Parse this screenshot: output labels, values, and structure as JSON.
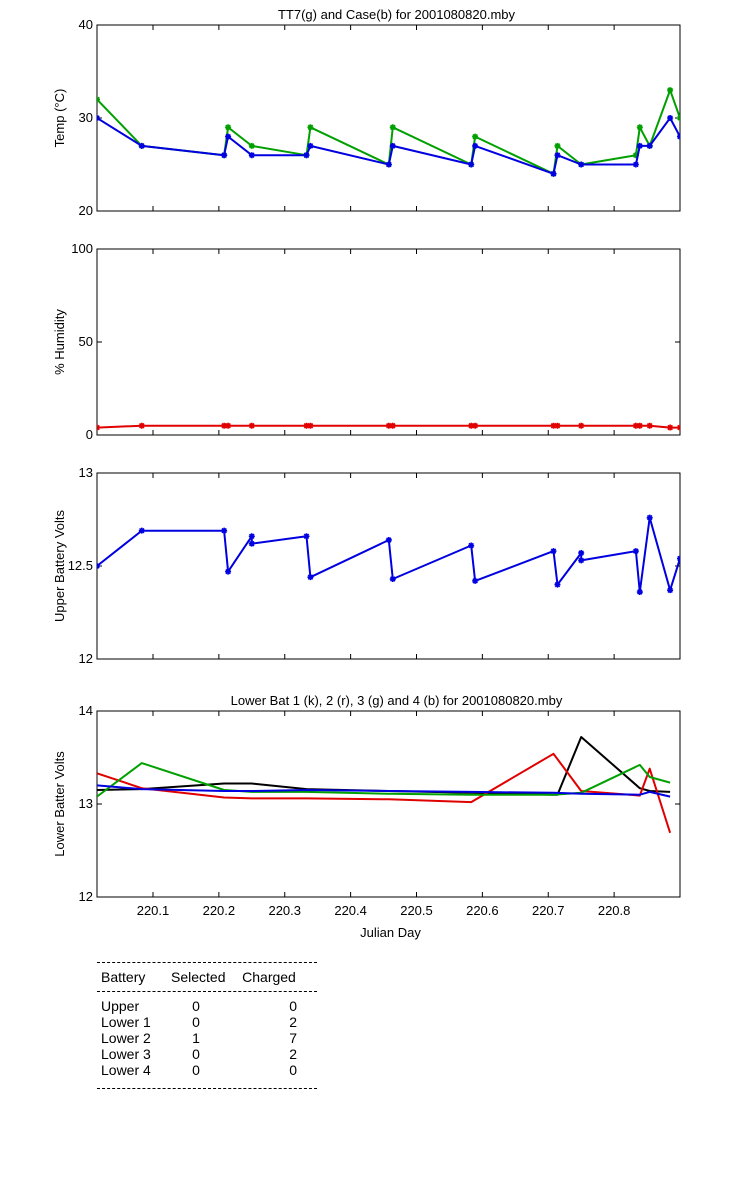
{
  "chart_data": [
    {
      "type": "line",
      "title": "TT7(g) and Case(b) for 2001080820.mby",
      "xlabel": "",
      "ylabel": "Temp  (°C)",
      "xlim": [
        220.015,
        220.9
      ],
      "ylim": [
        20,
        40
      ],
      "yticks": [
        "20",
        "30",
        "40"
      ],
      "markers": true,
      "series": [
        {
          "color": "#00a000",
          "x": [
            220.015,
            220.083,
            220.208,
            220.214,
            220.25,
            220.333,
            220.339,
            220.458,
            220.464,
            220.583,
            220.589,
            220.708,
            220.714,
            220.75,
            220.833,
            220.839,
            220.854,
            220.885,
            220.9
          ],
          "y": [
            32,
            27,
            26,
            29,
            27,
            26,
            29,
            25,
            29,
            25,
            28,
            24,
            27,
            25,
            26,
            29,
            27,
            33,
            30
          ]
        },
        {
          "color": "#0000e0",
          "x": [
            220.015,
            220.083,
            220.208,
            220.214,
            220.25,
            220.333,
            220.339,
            220.458,
            220.464,
            220.583,
            220.589,
            220.708,
            220.714,
            220.75,
            220.833,
            220.839,
            220.854,
            220.885,
            220.9
          ],
          "y": [
            30,
            27,
            26,
            28,
            26,
            26,
            27,
            25,
            27,
            25,
            27,
            24,
            26,
            25,
            25,
            27,
            27,
            30,
            28
          ]
        }
      ]
    },
    {
      "type": "line",
      "title": "",
      "xlabel": "",
      "ylabel": "% Humidity",
      "xlim": [
        220.015,
        220.9
      ],
      "ylim": [
        0,
        100
      ],
      "yticks": [
        "0",
        "50",
        "100"
      ],
      "markers": true,
      "series": [
        {
          "color": "#e00000",
          "x": [
            220.015,
            220.083,
            220.208,
            220.214,
            220.25,
            220.333,
            220.339,
            220.458,
            220.464,
            220.583,
            220.589,
            220.708,
            220.714,
            220.75,
            220.833,
            220.839,
            220.854,
            220.885,
            220.9
          ],
          "y": [
            4,
            5,
            5,
            5,
            5,
            5,
            5,
            5,
            5,
            5,
            5,
            5,
            5,
            5,
            5,
            5,
            5,
            4,
            4
          ]
        }
      ]
    },
    {
      "type": "line",
      "title": "",
      "xlabel": "",
      "ylabel": "Upper Battery Volts",
      "xlim": [
        220.015,
        220.9
      ],
      "ylim": [
        12,
        13
      ],
      "yticks": [
        "12",
        "12.5",
        "13"
      ],
      "markers": true,
      "series": [
        {
          "color": "#0000e0",
          "x": [
            220.015,
            220.083,
            220.208,
            220.214,
            220.25,
            220.25,
            220.333,
            220.339,
            220.458,
            220.464,
            220.583,
            220.589,
            220.708,
            220.714,
            220.75,
            220.75,
            220.833,
            220.839,
            220.854,
            220.885,
            220.9
          ],
          "y": [
            12.5,
            12.69,
            12.69,
            12.47,
            12.66,
            12.62,
            12.66,
            12.44,
            12.64,
            12.43,
            12.61,
            12.42,
            12.58,
            12.4,
            12.57,
            12.53,
            12.58,
            12.36,
            12.76,
            12.37,
            12.54
          ]
        }
      ]
    },
    {
      "type": "line",
      "title": "Lower Bat 1 (k), 2 (r), 3 (g) and 4 (b) for 2001080820.mby",
      "xlabel": "Julian Day",
      "ylabel": "Lower Batter Volts",
      "xlim": [
        220.015,
        220.9
      ],
      "ylim": [
        12,
        14
      ],
      "yticks": [
        "12",
        "13",
        "14"
      ],
      "xticks": [
        "220.1",
        "220.2",
        "220.3",
        "220.4",
        "220.5",
        "220.6",
        "220.7",
        "220.8"
      ],
      "markers": false,
      "series": [
        {
          "color": "#000000",
          "x": [
            220.015,
            220.083,
            220.208,
            220.25,
            220.333,
            220.458,
            220.583,
            220.708,
            220.714,
            220.75,
            220.839,
            220.854,
            220.885
          ],
          "y": [
            13.15,
            13.16,
            13.22,
            13.22,
            13.16,
            13.14,
            13.12,
            13.1,
            13.1,
            13.72,
            13.17,
            13.14,
            13.13
          ]
        },
        {
          "color": "#e00000",
          "x": [
            220.015,
            220.083,
            220.208,
            220.25,
            220.333,
            220.458,
            220.583,
            220.708,
            220.75,
            220.839,
            220.854,
            220.885
          ],
          "y": [
            13.33,
            13.17,
            13.07,
            13.06,
            13.06,
            13.05,
            13.02,
            13.54,
            13.14,
            13.09,
            13.38,
            12.69
          ]
        },
        {
          "color": "#00a000",
          "x": [
            220.015,
            220.083,
            220.208,
            220.25,
            220.333,
            220.458,
            220.583,
            220.708,
            220.75,
            220.839,
            220.854,
            220.885
          ],
          "y": [
            13.08,
            13.44,
            13.15,
            13.13,
            13.13,
            13.11,
            13.1,
            13.1,
            13.12,
            13.42,
            13.29,
            13.23
          ]
        },
        {
          "color": "#0000e0",
          "x": [
            220.015,
            220.083,
            220.208,
            220.25,
            220.333,
            220.458,
            220.583,
            220.708,
            220.75,
            220.839,
            220.854,
            220.885
          ],
          "y": [
            13.2,
            13.16,
            13.14,
            13.14,
            13.15,
            13.14,
            13.13,
            13.12,
            13.11,
            13.1,
            13.13,
            13.08
          ]
        }
      ]
    }
  ],
  "stats_table": {
    "headers": [
      "Battery",
      "Selected",
      "Charged"
    ],
    "rows": [
      [
        "Upper",
        "0",
        "0"
      ],
      [
        "Lower 1",
        "0",
        "2"
      ],
      [
        "Lower 2",
        "1",
        "7"
      ],
      [
        "Lower 3",
        "0",
        "2"
      ],
      [
        "Lower 4",
        "0",
        "0"
      ]
    ]
  }
}
